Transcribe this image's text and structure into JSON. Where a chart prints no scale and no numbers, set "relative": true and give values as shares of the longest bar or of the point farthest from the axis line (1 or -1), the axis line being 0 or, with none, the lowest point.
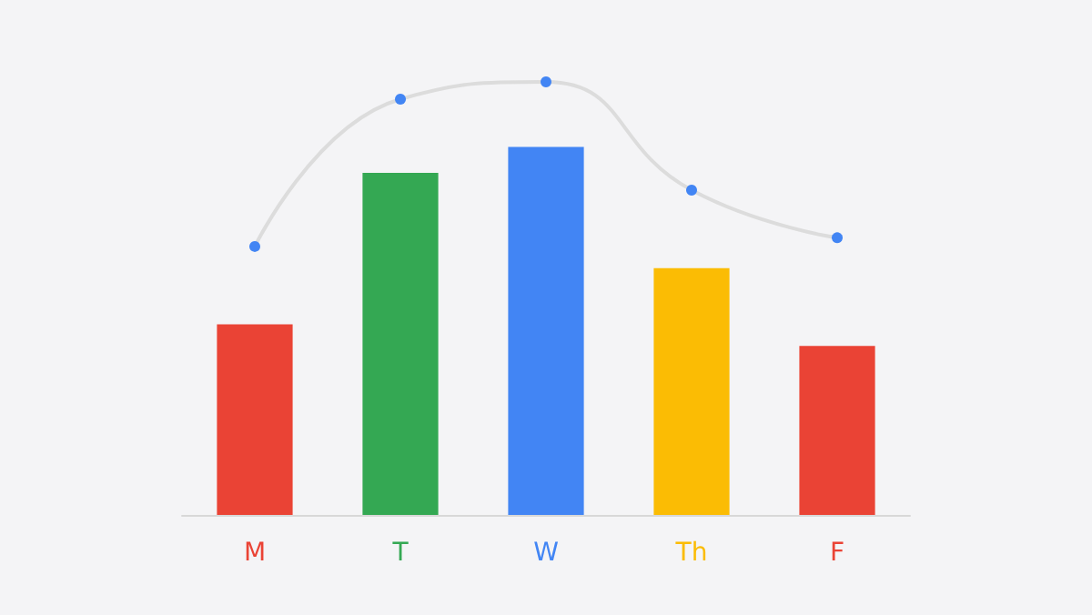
{
  "chart_data": {
    "type": "bar",
    "relative": true,
    "categories": [
      "M",
      "T",
      "W",
      "Th",
      "F"
    ],
    "colors": [
      "#ea4335",
      "#34a853",
      "#4285f4",
      "#fbbc04",
      "#ea4335"
    ],
    "series": [
      {
        "values": [
          0.44,
          0.79,
          0.85,
          0.57,
          0.39
        ],
        "colors": [
          "#ea4335",
          "#34a853",
          "#4285f4",
          "#fbbc04",
          "#ea4335"
        ]
      },
      {
        "type": "line",
        "color": "#dcdcdc",
        "values": [
          0.62,
          0.96,
          1,
          0.75,
          0.64
        ],
        "marker": "circle",
        "line_style": "solid"
      }
    ],
    "grid": false
  }
}
